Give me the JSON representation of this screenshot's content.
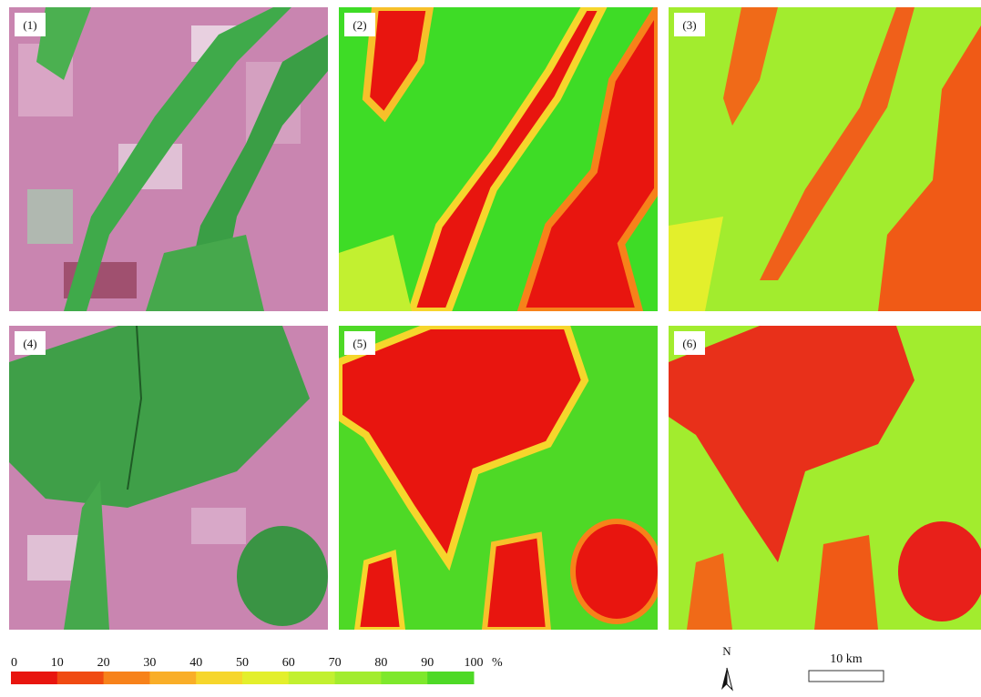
{
  "panels": [
    {
      "label": "(1)"
    },
    {
      "label": "(2)"
    },
    {
      "label": "(3)"
    },
    {
      "label": "(4)"
    },
    {
      "label": "(5)"
    },
    {
      "label": "(6)"
    }
  ],
  "legend": {
    "ticks": [
      0,
      10,
      20,
      30,
      40,
      50,
      60,
      70,
      80,
      90,
      100
    ],
    "unit": "%",
    "colors": [
      "#e8150f",
      "#f04a12",
      "#f7821a",
      "#f9ae28",
      "#f6d62c",
      "#e3ef2c",
      "#c2f030",
      "#a2ec2e",
      "#7ee82c",
      "#4ed926"
    ]
  },
  "north": "N",
  "scale_bar": "10 km"
}
